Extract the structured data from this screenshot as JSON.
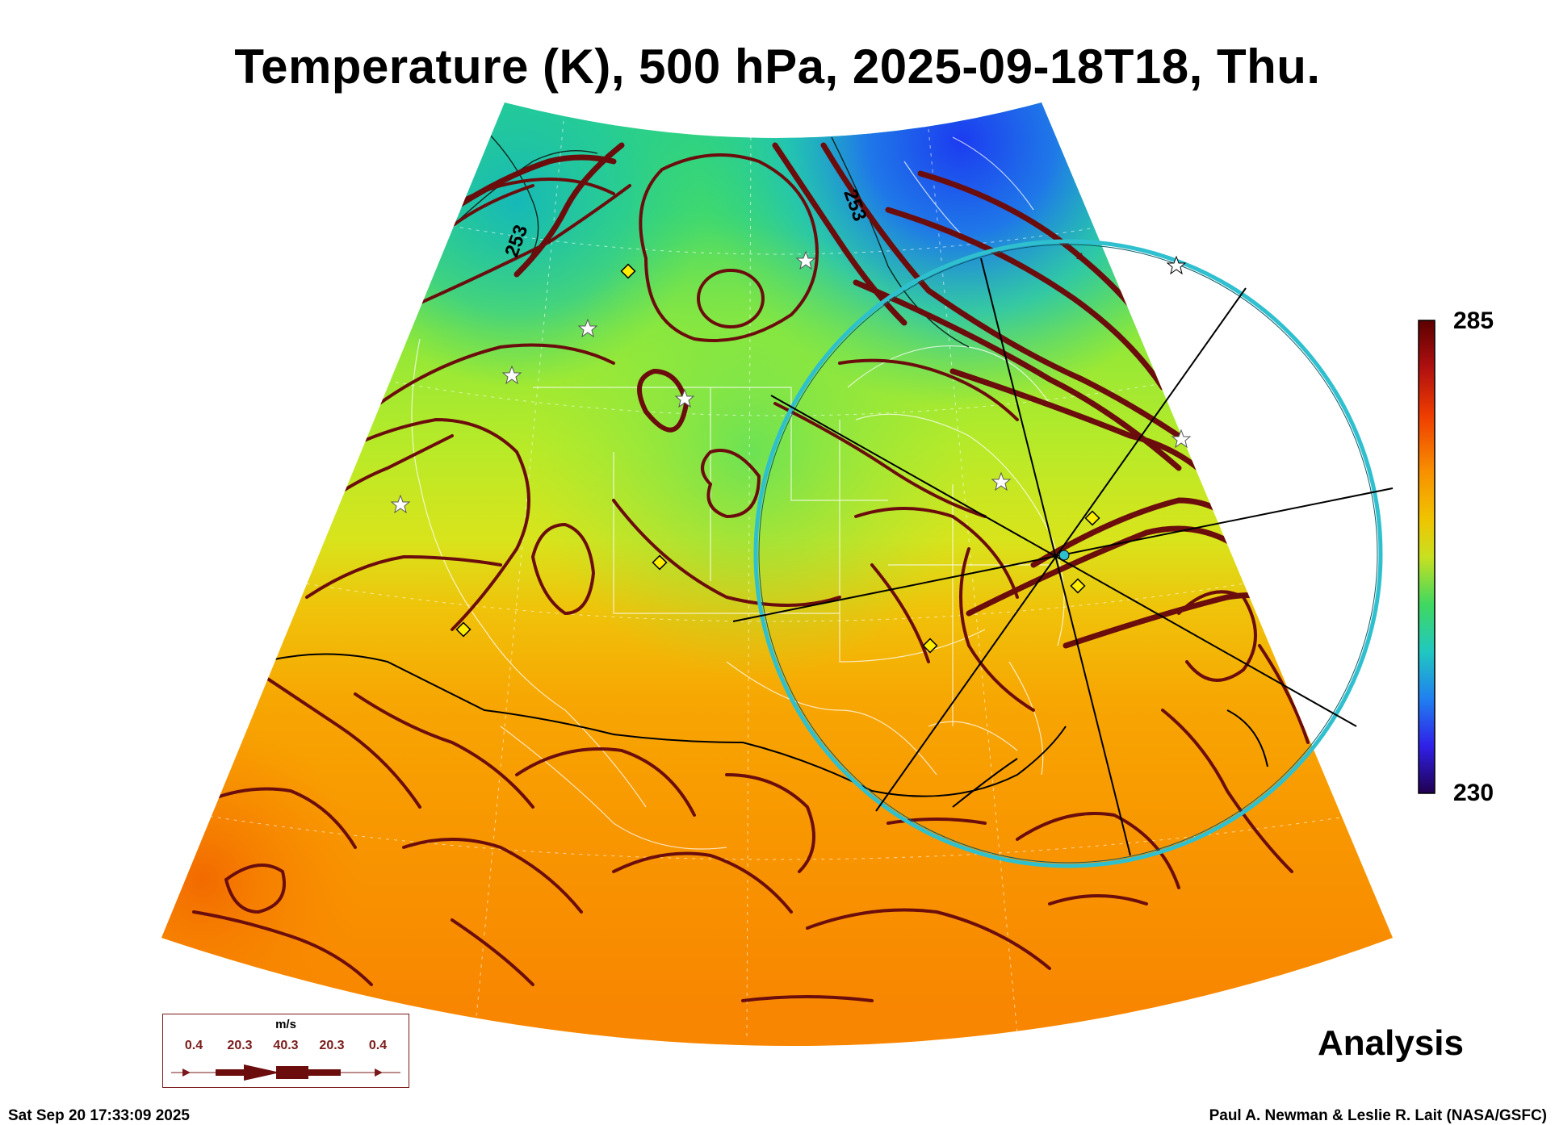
{
  "title": "Temperature (K), 500 hPa, 2025-09-18T18, Thu.",
  "colorbar": {
    "max_label": "285",
    "min_label": "230",
    "min": 230,
    "max": 285
  },
  "contour_labels": [
    "253",
    "253"
  ],
  "legend": {
    "unit": "m/s",
    "values": [
      "0.4",
      "20.3",
      "40.3",
      "20.3",
      "0.4"
    ]
  },
  "analysis_label": "Analysis",
  "timestamp": "Sat Sep 20 17:33:09 2025",
  "credits": "Paul A. Newman & Leslie R. Lait (NASA/GSFC)",
  "colors": {
    "streamline": "#6b0d0d",
    "range_ring": "#2fc0cf",
    "marker_diamond": "#ffee00",
    "legend_border": "#7a1a1a"
  }
}
